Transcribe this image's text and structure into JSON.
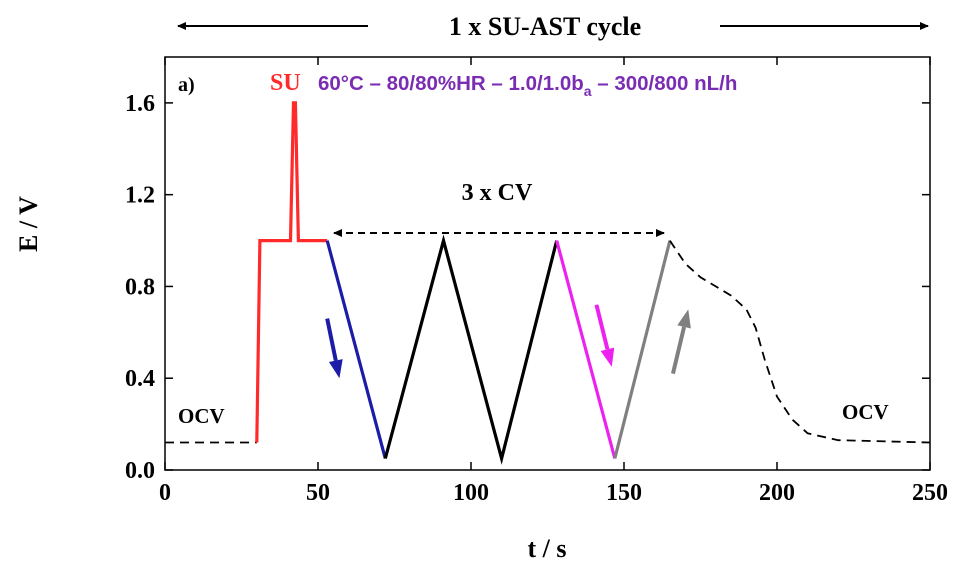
{
  "chart_data": {
    "type": "line",
    "panel_label": "a)",
    "xlabel": "t / s",
    "ylabel": "E / V",
    "xlim": [
      0,
      250
    ],
    "ylim": [
      0,
      1.8
    ],
    "xticks": [
      0,
      50,
      100,
      150,
      200,
      250
    ],
    "yticks": [
      0.0,
      0.4,
      0.8,
      1.2,
      1.6
    ],
    "xtick_labels": [
      "0",
      "50",
      "100",
      "150",
      "200",
      "250"
    ],
    "ytick_labels": [
      "0.0",
      "0.4",
      "0.8",
      "1.2",
      "1.6"
    ],
    "grid": false,
    "header": "1 x SU-AST cycle",
    "su_label": "SU",
    "conditions_label": {
      "part1": "60°C – 80/80%HR – 1.0/1.0b",
      "sub": "a",
      "part2": " – 300/800 nL/h"
    },
    "cv_label": "3 x CV",
    "ocv_left_label": "OCV",
    "ocv_right_label": "OCV",
    "colors": {
      "su": "#ff2a2a",
      "cv_first_down": "#1c1ca8",
      "cv_middle": "#000000",
      "cv_last_down": "#ee22ee",
      "cv_last_up": "#808080",
      "ocv": "#000000",
      "conditions_text": "#7a2db3"
    },
    "series": [
      {
        "segment": "ocv-start",
        "style": "dashed",
        "color_key": "ocv",
        "x": [
          0,
          30
        ],
        "y": [
          0.12,
          0.12
        ]
      },
      {
        "segment": "su",
        "style": "solid",
        "color_key": "su",
        "x": [
          30,
          31,
          41,
          42,
          42.6,
          43.6,
          44,
          53
        ],
        "y": [
          0.12,
          1.0,
          1.0,
          1.6,
          1.6,
          1.0,
          1.0,
          1.0
        ]
      },
      {
        "segment": "cv-down-1",
        "style": "solid",
        "color_key": "cv_first_down",
        "x": [
          53,
          72
        ],
        "y": [
          1.0,
          0.05
        ]
      },
      {
        "segment": "cv-middle",
        "style": "solid",
        "color_key": "cv_middle",
        "x": [
          72,
          91,
          110,
          128
        ],
        "y": [
          0.05,
          1.0,
          0.05,
          1.0
        ]
      },
      {
        "segment": "cv-down-3",
        "style": "solid",
        "color_key": "cv_last_down",
        "x": [
          128,
          147
        ],
        "y": [
          1.0,
          0.05
        ]
      },
      {
        "segment": "cv-up-3",
        "style": "solid",
        "color_key": "cv_last_up",
        "x": [
          147,
          165
        ],
        "y": [
          0.05,
          1.0
        ]
      },
      {
        "segment": "ocv-end",
        "style": "dashed",
        "color_key": "ocv",
        "x": [
          165,
          170,
          175,
          180,
          185,
          190,
          193,
          196,
          200,
          205,
          210,
          220,
          250
        ],
        "y": [
          1.0,
          0.9,
          0.84,
          0.8,
          0.76,
          0.7,
          0.62,
          0.48,
          0.32,
          0.22,
          0.16,
          0.13,
          0.12
        ]
      }
    ],
    "annotations": [
      {
        "kind": "arrow",
        "color_key": "cv_first_down",
        "from": [
          53,
          0.66
        ],
        "to": [
          57,
          0.4
        ]
      },
      {
        "kind": "arrow",
        "color_key": "cv_last_down",
        "from": [
          141,
          0.72
        ],
        "to": [
          146,
          0.45
        ]
      },
      {
        "kind": "arrow",
        "color_key": "cv_last_up",
        "from": [
          166,
          0.42
        ],
        "to": [
          171,
          0.7
        ]
      }
    ]
  }
}
